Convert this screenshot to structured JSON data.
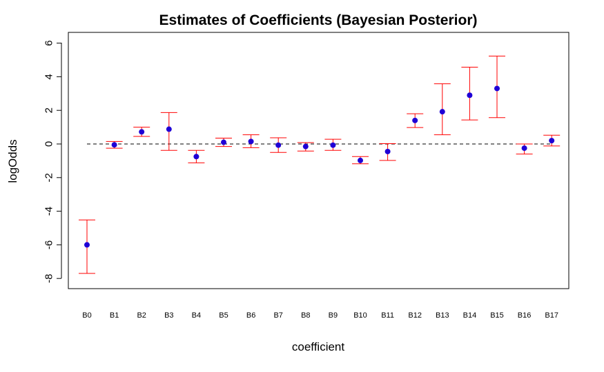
{
  "chart_data": {
    "type": "scatter",
    "title": "Estimates of Coefficients (Bayesian Posterior)",
    "xlabel": "coefficient",
    "ylabel": "logOdds",
    "categories": [
      "B0",
      "B1",
      "B2",
      "B3",
      "B4",
      "B5",
      "B6",
      "B7",
      "B8",
      "B9",
      "B10",
      "B11",
      "B12",
      "B13",
      "B14",
      "B15",
      "B16",
      "B17"
    ],
    "estimate": [
      -6.0,
      -0.05,
      0.72,
      0.88,
      -0.75,
      0.1,
      0.15,
      -0.07,
      -0.15,
      -0.07,
      -0.98,
      -0.45,
      1.4,
      1.92,
      2.9,
      3.3,
      -0.25,
      0.2
    ],
    "lower": [
      -7.7,
      -0.25,
      0.45,
      -0.38,
      -1.12,
      -0.15,
      -0.22,
      -0.5,
      -0.42,
      -0.38,
      -1.18,
      -0.98,
      0.98,
      0.55,
      1.43,
      1.57,
      -0.6,
      -0.12
    ],
    "upper": [
      -4.52,
      0.15,
      1.0,
      1.87,
      -0.38,
      0.35,
      0.55,
      0.37,
      0.08,
      0.28,
      -0.75,
      0.02,
      1.8,
      3.58,
      4.57,
      5.23,
      0.0,
      0.52
    ],
    "ylim": [
      -8.6,
      6.4
    ],
    "yticks": [
      -8,
      -6,
      -4,
      -2,
      0,
      2,
      4,
      6
    ],
    "reference_line": 0,
    "grid": false,
    "colors": {
      "point": "#1f00d6",
      "error_bar": "#ff0000",
      "reference_line": "#000000",
      "frame": "#000000"
    }
  }
}
